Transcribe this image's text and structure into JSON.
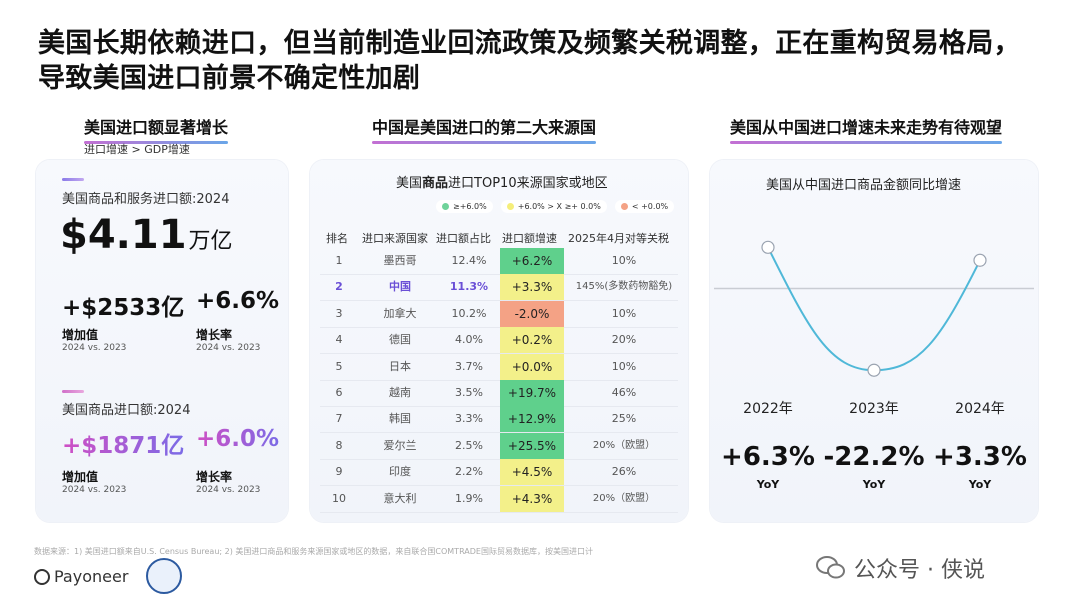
{
  "headline": "美国长期依赖进口，但当前制造业回流政策及频繁关税调整，正在重构贸易格局，导致美国进口前景不确定性加剧",
  "left": {
    "section_title": "美国进口额显著增长",
    "subnote": "进口增速 > GDP增速",
    "block1": {
      "label": "美国商品和服务进口额:2024",
      "big_num": "$4.11",
      "big_unit": "万亿",
      "increase_value": "+$2533亿",
      "growth_rate": "+6.6%",
      "increase_caption": "增加值",
      "growth_caption": "增长率",
      "compare": "2024 vs. 2023"
    },
    "block2": {
      "label": "美国商品进口额:2024",
      "increase_value": "+$1871亿",
      "growth_rate": "+6.0%",
      "increase_caption": "增加值",
      "growth_caption": "增长率",
      "compare": "2024 vs. 2023"
    }
  },
  "middle": {
    "section_title": "中国是美国进口的第二大来源国",
    "table_title_pre": "美国",
    "table_title_bold": "商品",
    "table_title_post": "进口TOP10来源国家或地区",
    "legend": [
      {
        "label": "≥+6.0%",
        "color": "#6fd39a"
      },
      {
        "label": "+6.0% > X ≥+ 0.0%",
        "color": "#f5ee7a"
      },
      {
        "label": "< +0.0%",
        "color": "#f4a285"
      }
    ],
    "headers": [
      "排名",
      "进口来源国家",
      "进口额占比",
      "进口额增速",
      "2025年4月对等关税"
    ]
  },
  "right": {
    "section_title": "美国从中国进口增速未来走势有待观望",
    "chart_title": "美国从中国进口商品金额同比增速",
    "yoy_label": "YoY"
  },
  "chart_data": [
    {
      "type": "table",
      "title": "美国商品进口TOP10来源国家或地区",
      "columns": [
        "排名",
        "进口来源国家",
        "进口额占比",
        "进口额增速",
        "2025年4月对等关税"
      ],
      "rows": [
        {
          "rank": "1",
          "country": "墨西哥",
          "share": "12.4%",
          "growth": "+6.2%",
          "tariff": "10%",
          "band": "high"
        },
        {
          "rank": "2",
          "country": "中国",
          "share": "11.3%",
          "growth": "+3.3%",
          "tariff": "145%(多数药物豁免)",
          "band": "mid",
          "highlight": true
        },
        {
          "rank": "3",
          "country": "加拿大",
          "share": "10.2%",
          "growth": "-2.0%",
          "tariff": "10%",
          "band": "low"
        },
        {
          "rank": "4",
          "country": "德国",
          "share": "4.0%",
          "growth": "+0.2%",
          "tariff": "20%",
          "band": "mid"
        },
        {
          "rank": "5",
          "country": "日本",
          "share": "3.7%",
          "growth": "+0.0%",
          "tariff": "10%",
          "band": "mid"
        },
        {
          "rank": "6",
          "country": "越南",
          "share": "3.5%",
          "growth": "+19.7%",
          "tariff": "46%",
          "band": "high"
        },
        {
          "rank": "7",
          "country": "韩国",
          "share": "3.3%",
          "growth": "+12.9%",
          "tariff": "25%",
          "band": "high"
        },
        {
          "rank": "8",
          "country": "爱尔兰",
          "share": "2.5%",
          "growth": "+25.5%",
          "tariff": "20%（欧盟）",
          "band": "high"
        },
        {
          "rank": "9",
          "country": "印度",
          "share": "2.2%",
          "growth": "+4.5%",
          "tariff": "26%",
          "band": "mid"
        },
        {
          "rank": "10",
          "country": "意大利",
          "share": "1.9%",
          "growth": "+4.3%",
          "tariff": "20%（欧盟）",
          "band": "mid"
        }
      ],
      "band_colors": {
        "high": "#5fd08c",
        "mid": "#f3f08a",
        "low": "#f4a285"
      }
    },
    {
      "type": "line",
      "title": "美国从中国进口商品金额同比增速",
      "x": [
        "2022年",
        "2023年",
        "2024年"
      ],
      "values": [
        6.3,
        -22.2,
        3.3
      ],
      "value_labels": [
        "+6.3%",
        "-22.2%",
        "+3.3%"
      ],
      "line_color": "#4fb8d8",
      "grid": false,
      "baseline": 0
    }
  ],
  "footer": {
    "footnote": "数据来源：1) 美国进口额来自U.S. Census Bureau; 2) 美国进口商品和服务来源国家或地区的数据，来自联合国COMTRADE国际贸易数据库，按美国进口计",
    "logo": "Payoneer",
    "watermark": "公众号 · 侠说"
  }
}
